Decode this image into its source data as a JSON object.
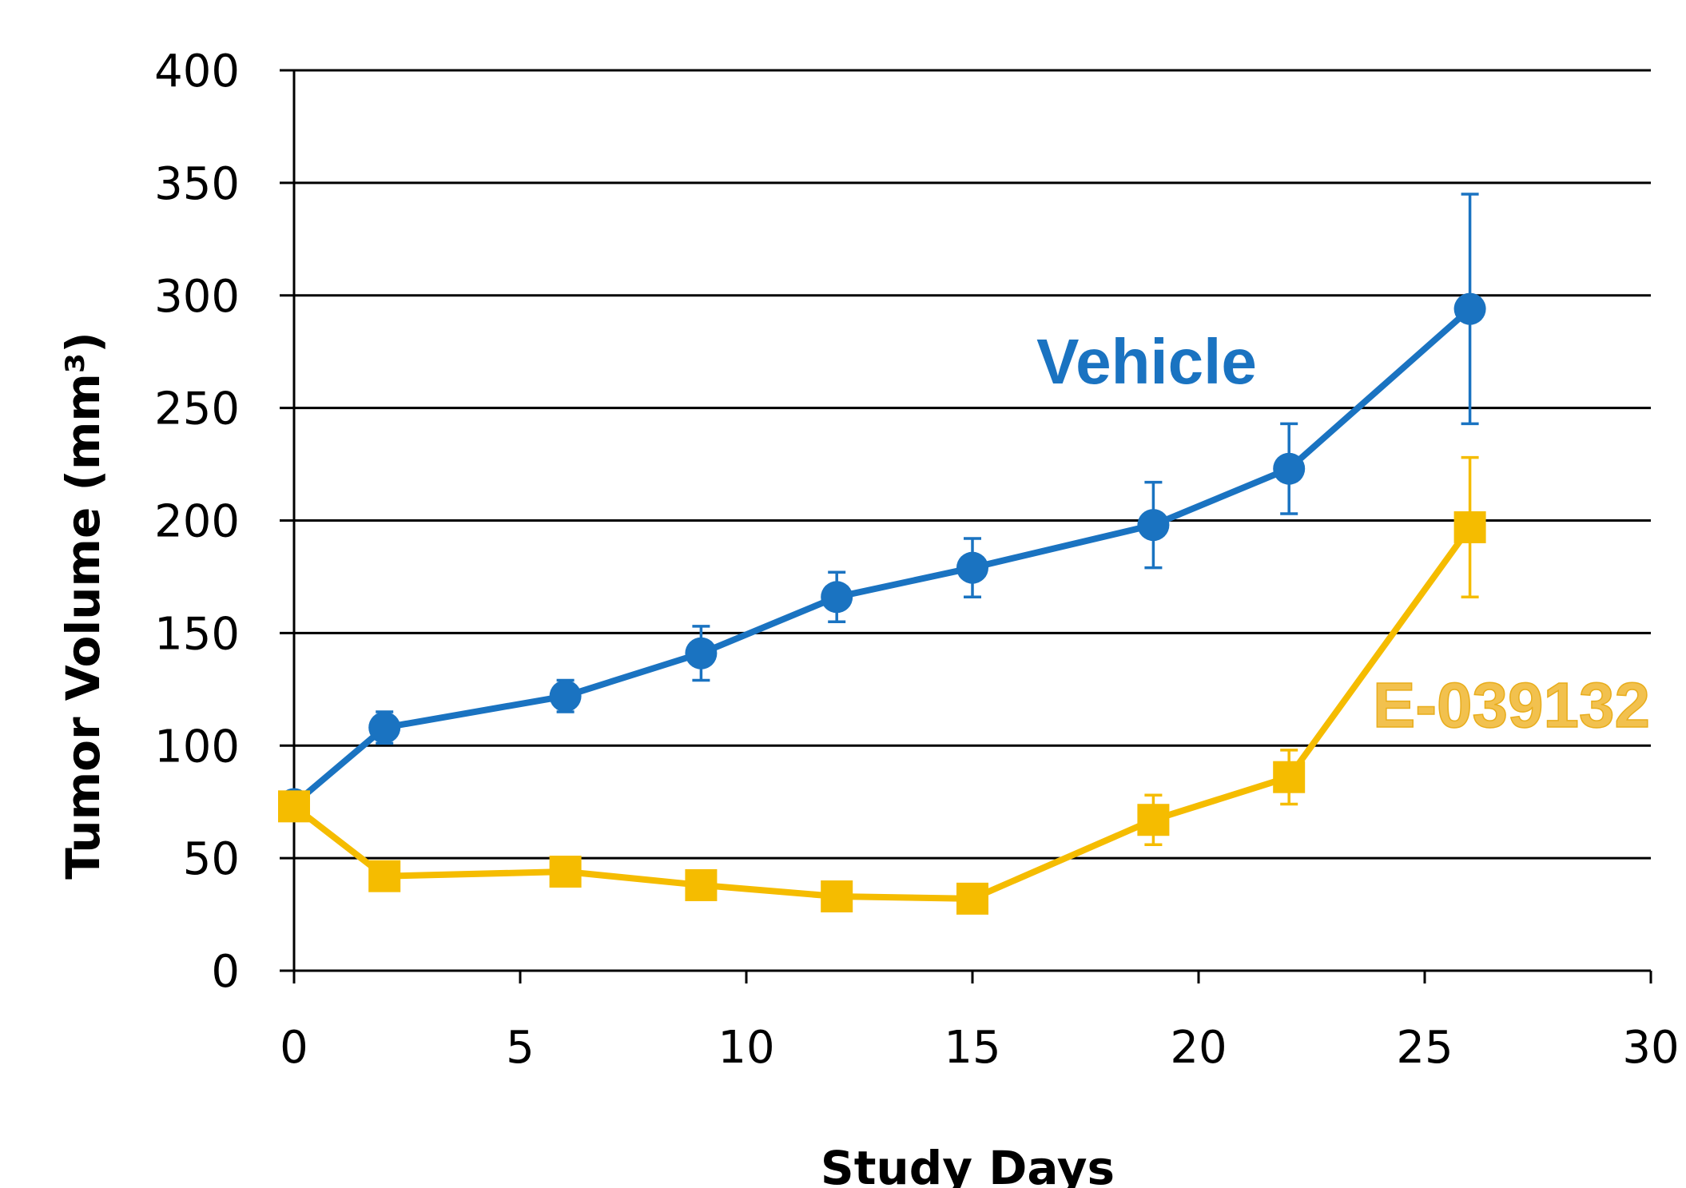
{
  "chart_data": {
    "type": "line",
    "title": "",
    "xlabel": "Study Days",
    "ylabel": "Tumor Volume (mm³)",
    "xlim": [
      0,
      30
    ],
    "ylim": [
      0,
      400
    ],
    "xticks": [
      0,
      5,
      10,
      15,
      20,
      25,
      30
    ],
    "yticks": [
      0,
      50,
      100,
      150,
      200,
      250,
      300,
      350,
      400
    ],
    "grid": "horizontal",
    "legend": "none",
    "series": [
      {
        "name": "Vehicle",
        "color": "#1a73c1",
        "marker": "circle",
        "x": [
          0,
          2,
          6,
          9,
          12,
          15,
          19,
          22,
          26
        ],
        "y": [
          74,
          108,
          122,
          141,
          166,
          179,
          198,
          223,
          294
        ],
        "error": [
          4,
          7,
          7,
          12,
          11,
          13,
          19,
          20,
          51
        ]
      },
      {
        "name": "E-039132",
        "color": "#f5bc00",
        "marker": "square",
        "x": [
          0,
          2,
          6,
          9,
          12,
          15,
          19,
          22,
          26
        ],
        "y": [
          73,
          42,
          44,
          38,
          33,
          32,
          67,
          86,
          197
        ],
        "error": [
          3,
          4,
          4,
          4,
          4,
          4,
          11,
          12,
          31
        ]
      }
    ],
    "annotations": [
      {
        "text": "Vehicle",
        "series": 0
      },
      {
        "text": "E-039132",
        "series": 1
      }
    ]
  }
}
